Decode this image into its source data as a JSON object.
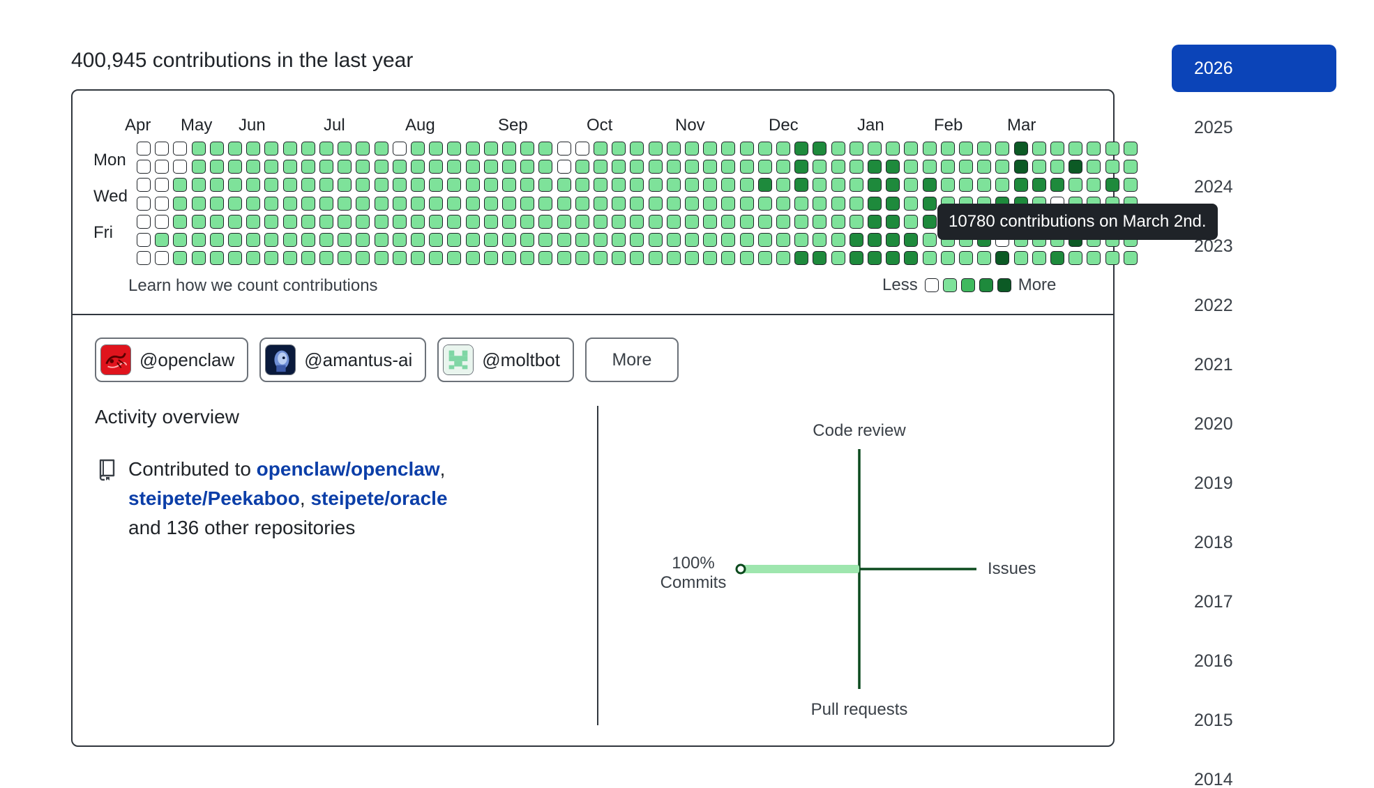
{
  "summary": "400,945 contributions in the last year",
  "months": [
    "Apr",
    "May",
    "Jun",
    "Jul",
    "Aug",
    "Sep",
    "Oct",
    "Nov",
    "Dec",
    "Jan",
    "Feb",
    "Mar"
  ],
  "day_labels": [
    "Mon",
    "Wed",
    "Fri"
  ],
  "learn_link": "Learn how we count contributions",
  "legend": {
    "less": "Less",
    "more": "More"
  },
  "tooltip": "10780 contributions on March 2nd.",
  "organizations": [
    {
      "handle": "@openclaw",
      "avatar": "openclaw-lobster-icon"
    },
    {
      "handle": "@amantus-ai",
      "avatar": "amantus-robot-icon"
    },
    {
      "handle": "@moltbot",
      "avatar": "moltbot-invader-icon"
    }
  ],
  "more_button": "More",
  "activity": {
    "title": "Activity overview",
    "prefix": "Contributed to ",
    "repos": [
      "openclaw/openclaw",
      "steipete/Peekaboo",
      "steipete/oracle"
    ],
    "sep1": ",",
    "sep2": ", ",
    "suffix": "and 136 other repositories",
    "icon": "repo-icon"
  },
  "activity_axes": {
    "top": "Code review",
    "bottom": "Pull requests",
    "right": "Issues",
    "left_percent": "100%",
    "left_label": "Commits",
    "commits_percent": 100
  },
  "years": [
    "2026",
    "2025",
    "2024",
    "2023",
    "2022",
    "2021",
    "2020",
    "2019",
    "2018",
    "2017",
    "2016",
    "2015",
    "2014"
  ],
  "selected_year": "2026",
  "colors": {
    "level0": "#ffffff",
    "level1": "#7ee29a",
    "level2": "#3fb95e",
    "level3": "#1e8a3c",
    "level4": "#0c5a25",
    "accent": "#0b44b8",
    "link": "#0b3ea8"
  },
  "contribution_levels": [
    [
      0,
      0,
      0,
      0,
      0,
      0,
      0
    ],
    [
      0,
      0,
      0,
      0,
      0,
      1,
      0
    ],
    [
      0,
      0,
      1,
      1,
      1,
      1,
      1
    ],
    [
      1,
      1,
      1,
      1,
      1,
      1,
      1
    ],
    [
      1,
      1,
      1,
      1,
      1,
      1,
      1
    ],
    [
      1,
      1,
      1,
      1,
      1,
      1,
      1
    ],
    [
      1,
      1,
      1,
      1,
      1,
      1,
      1
    ],
    [
      1,
      1,
      1,
      1,
      1,
      1,
      1
    ],
    [
      1,
      1,
      1,
      1,
      1,
      1,
      1
    ],
    [
      1,
      1,
      1,
      1,
      1,
      1,
      1
    ],
    [
      1,
      1,
      1,
      1,
      1,
      1,
      1
    ],
    [
      1,
      1,
      1,
      1,
      1,
      1,
      1
    ],
    [
      1,
      1,
      1,
      1,
      1,
      1,
      1
    ],
    [
      1,
      1,
      1,
      1,
      1,
      1,
      1
    ],
    [
      0,
      1,
      1,
      1,
      1,
      1,
      1
    ],
    [
      1,
      1,
      1,
      1,
      1,
      1,
      1
    ],
    [
      1,
      1,
      1,
      1,
      1,
      1,
      1
    ],
    [
      1,
      1,
      1,
      1,
      1,
      1,
      1
    ],
    [
      1,
      1,
      1,
      1,
      1,
      1,
      1
    ],
    [
      1,
      1,
      1,
      1,
      1,
      1,
      1
    ],
    [
      1,
      1,
      1,
      1,
      1,
      1,
      1
    ],
    [
      1,
      1,
      1,
      1,
      1,
      1,
      1
    ],
    [
      1,
      1,
      1,
      1,
      1,
      1,
      1
    ],
    [
      0,
      0,
      1,
      1,
      1,
      1,
      1
    ],
    [
      0,
      1,
      1,
      1,
      1,
      1,
      1
    ],
    [
      1,
      1,
      1,
      1,
      1,
      1,
      1
    ],
    [
      1,
      1,
      1,
      1,
      1,
      1,
      1
    ],
    [
      1,
      1,
      1,
      1,
      1,
      1,
      1
    ],
    [
      1,
      1,
      1,
      1,
      1,
      1,
      1
    ],
    [
      1,
      1,
      1,
      1,
      1,
      1,
      1
    ],
    [
      1,
      1,
      1,
      1,
      1,
      1,
      1
    ],
    [
      1,
      1,
      1,
      1,
      1,
      1,
      1
    ],
    [
      1,
      1,
      1,
      1,
      1,
      1,
      1
    ],
    [
      1,
      1,
      1,
      1,
      1,
      1,
      1
    ],
    [
      1,
      1,
      3,
      1,
      1,
      1,
      1
    ],
    [
      1,
      1,
      1,
      1,
      1,
      1,
      1
    ],
    [
      3,
      3,
      3,
      1,
      1,
      1,
      3
    ],
    [
      3,
      1,
      1,
      1,
      1,
      1,
      3
    ],
    [
      1,
      1,
      1,
      1,
      1,
      1,
      1
    ],
    [
      1,
      1,
      1,
      1,
      1,
      3,
      3
    ],
    [
      1,
      3,
      3,
      3,
      3,
      3,
      3
    ],
    [
      1,
      3,
      3,
      3,
      3,
      3,
      3
    ],
    [
      1,
      1,
      1,
      1,
      1,
      3,
      3
    ],
    [
      1,
      1,
      3,
      3,
      3,
      1,
      1
    ],
    [
      1,
      1,
      1,
      1,
      1,
      1,
      1
    ],
    [
      1,
      1,
      1,
      1,
      1,
      1,
      1
    ],
    [
      1,
      1,
      1,
      1,
      1,
      3,
      1
    ],
    [
      1,
      1,
      1,
      3,
      3,
      0,
      4
    ],
    [
      4,
      4,
      3,
      3,
      3,
      1,
      1
    ],
    [
      1,
      1,
      3,
      1,
      3,
      1,
      1
    ],
    [
      1,
      1,
      3,
      0,
      1,
      1,
      3
    ],
    [
      1,
      4,
      1,
      1,
      1,
      4,
      1
    ],
    [
      1,
      1,
      1,
      1,
      1,
      1,
      1
    ],
    [
      1,
      1,
      3,
      1,
      1,
      1,
      1
    ],
    [
      1,
      1,
      1,
      1,
      0,
      1,
      1
    ]
  ]
}
